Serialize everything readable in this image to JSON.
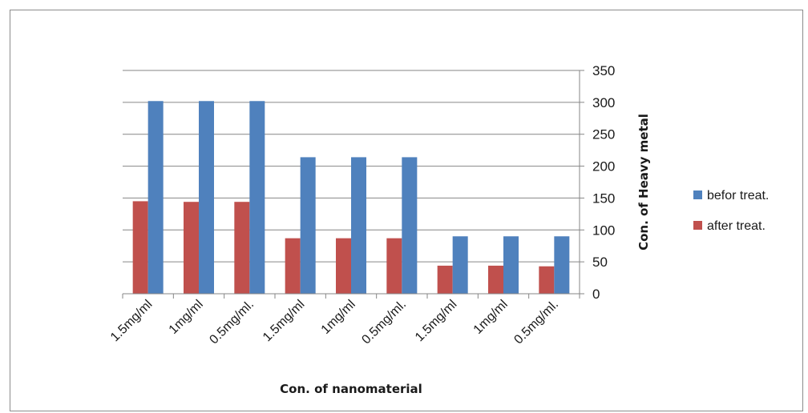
{
  "chart_data": {
    "type": "bar",
    "categories": [
      "1.5mg/ml",
      "1mg/ml",
      "0.5mg/ml.",
      "1.5mg/ml",
      "1mg/ml",
      "0.5mg/ml.",
      "1.5mg/ml",
      "1mg/ml",
      "0.5mg/ml."
    ],
    "series": [
      {
        "name": "after treat.",
        "color": "#c0504d",
        "values": [
          145,
          144,
          144,
          87,
          87,
          87,
          44,
          44,
          43
        ]
      },
      {
        "name": "befor treat.",
        "color": "#4f81bd",
        "values": [
          302,
          302,
          302,
          214,
          214,
          214,
          90,
          90,
          90
        ]
      }
    ],
    "xlabel": "Con. of nanomaterial",
    "ylabel": "Con. of Heavy metal",
    "ylim": [
      0,
      350
    ],
    "yticks": [
      0,
      50,
      100,
      150,
      200,
      250,
      300,
      350
    ],
    "y_axis_side": "right",
    "grid": true,
    "legend": {
      "placement": "right",
      "order": [
        "befor treat.",
        "after treat."
      ]
    }
  }
}
